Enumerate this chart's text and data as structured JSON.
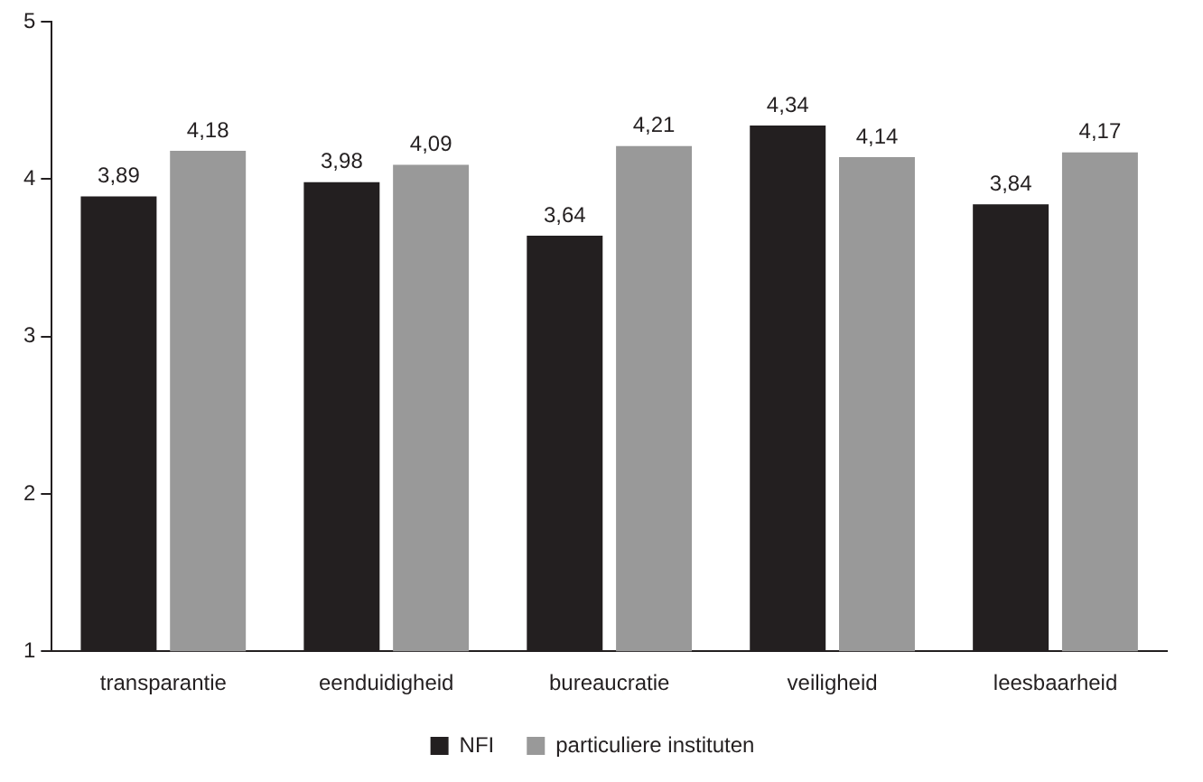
{
  "chart_data": {
    "type": "bar",
    "categories": [
      "transparantie",
      "eenduidigheid",
      "bureaucratie",
      "veiligheid",
      "leesbaarheid"
    ],
    "series": [
      {
        "name": "NFI",
        "color": "#231f20",
        "values": [
          3.89,
          3.98,
          3.64,
          4.34,
          3.84
        ],
        "value_labels": [
          "3,89",
          "3,98",
          "3,64",
          "4,34",
          "3,84"
        ]
      },
      {
        "name": "particuliere instituten",
        "color": "#999999",
        "values": [
          4.18,
          4.09,
          4.21,
          4.14,
          4.17
        ],
        "value_labels": [
          "4,18",
          "4,09",
          "4,21",
          "4,14",
          "4,17"
        ]
      }
    ],
    "ylim": [
      1,
      5
    ],
    "yticks": [
      1,
      2,
      3,
      4,
      5
    ],
    "grid": false,
    "legend": "bottom"
  }
}
